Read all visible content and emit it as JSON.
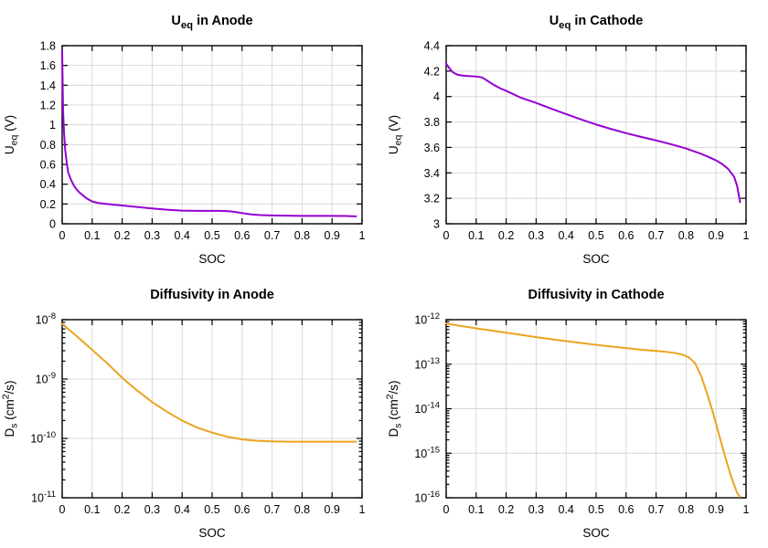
{
  "figure": {
    "background": "#ffffff",
    "grid_color": "#d8d8d8",
    "axis_color": "#000000",
    "text_color": "#000000"
  },
  "chart_data": [
    {
      "id": "ueq-anode",
      "type": "line",
      "title_segments": [
        {
          "t": "U"
        },
        {
          "t": "eq",
          "s": "sub"
        },
        {
          "t": " in Anode"
        }
      ],
      "xlabel": "SOC",
      "ylabel_segments": [
        {
          "t": "U"
        },
        {
          "t": "eq",
          "s": "sub"
        },
        {
          "t": " (V)"
        }
      ],
      "xlim": [
        0,
        1
      ],
      "ylim": [
        0,
        1.8
      ],
      "yscale": "linear",
      "grid": true,
      "legend": "none",
      "line_color": "#9400d3",
      "xticks": {
        "values": [
          0,
          0.1,
          0.2,
          0.3,
          0.4,
          0.5,
          0.6,
          0.7,
          0.8,
          0.9,
          1
        ],
        "labels": [
          "0",
          "0.1",
          "0.2",
          "0.3",
          "0.4",
          "0.5",
          "0.6",
          "0.7",
          "0.8",
          "0.9",
          "1"
        ]
      },
      "yticks": {
        "values": [
          0,
          0.2,
          0.4,
          0.6,
          0.8,
          1,
          1.2,
          1.4,
          1.6,
          1.8
        ],
        "labels": [
          "0",
          "0.2",
          "0.4",
          "0.6",
          "0.8",
          "1",
          "1.2",
          "1.4",
          "1.6",
          "1.8"
        ]
      },
      "series": [
        {
          "name": "Ueq anode",
          "x": [
            0,
            0.003,
            0.006,
            0.01,
            0.015,
            0.02,
            0.03,
            0.04,
            0.05,
            0.06,
            0.08,
            0.1,
            0.12,
            0.15,
            0.18,
            0.2,
            0.25,
            0.3,
            0.35,
            0.4,
            0.45,
            0.5,
            0.53,
            0.56,
            0.58,
            0.6,
            0.63,
            0.66,
            0.7,
            0.75,
            0.8,
            0.85,
            0.9,
            0.95,
            0.98
          ],
          "y": [
            1.75,
            1.15,
            0.93,
            0.75,
            0.62,
            0.52,
            0.44,
            0.38,
            0.34,
            0.31,
            0.26,
            0.225,
            0.21,
            0.2,
            0.19,
            0.185,
            0.17,
            0.155,
            0.142,
            0.133,
            0.13,
            0.13,
            0.13,
            0.126,
            0.118,
            0.108,
            0.095,
            0.088,
            0.084,
            0.082,
            0.08,
            0.08,
            0.08,
            0.078,
            0.075
          ]
        }
      ]
    },
    {
      "id": "ueq-cathode",
      "type": "line",
      "title_segments": [
        {
          "t": "U"
        },
        {
          "t": "eq",
          "s": "sub"
        },
        {
          "t": " in Cathode"
        }
      ],
      "xlabel": "SOC",
      "ylabel_segments": [
        {
          "t": "U"
        },
        {
          "t": "eq",
          "s": "sub"
        },
        {
          "t": " (V)"
        }
      ],
      "xlim": [
        0,
        1
      ],
      "ylim": [
        3,
        4.4
      ],
      "yscale": "linear",
      "grid": true,
      "legend": "none",
      "line_color": "#9400d3",
      "xticks": {
        "values": [
          0,
          0.1,
          0.2,
          0.3,
          0.4,
          0.5,
          0.6,
          0.7,
          0.8,
          0.9,
          1
        ],
        "labels": [
          "0",
          "0.1",
          "0.2",
          "0.3",
          "0.4",
          "0.5",
          "0.6",
          "0.7",
          "0.8",
          "0.9",
          "1"
        ]
      },
      "yticks": {
        "values": [
          3,
          3.2,
          3.4,
          3.6,
          3.8,
          4,
          4.2,
          4.4
        ],
        "labels": [
          "3",
          "3.2",
          "3.4",
          "3.6",
          "3.8",
          "4",
          "4.2",
          "4.4"
        ]
      },
      "series": [
        {
          "name": "Ueq cathode",
          "x": [
            0,
            0.01,
            0.02,
            0.03,
            0.04,
            0.06,
            0.08,
            0.1,
            0.12,
            0.14,
            0.16,
            0.18,
            0.2,
            0.25,
            0.3,
            0.35,
            0.4,
            0.45,
            0.5,
            0.55,
            0.6,
            0.65,
            0.7,
            0.75,
            0.8,
            0.85,
            0.88,
            0.9,
            0.92,
            0.94,
            0.96,
            0.97,
            0.98
          ],
          "y": [
            4.26,
            4.225,
            4.195,
            4.18,
            4.17,
            4.163,
            4.16,
            4.158,
            4.15,
            4.12,
            4.09,
            4.065,
            4.045,
            3.99,
            3.95,
            3.905,
            3.862,
            3.82,
            3.78,
            3.745,
            3.712,
            3.683,
            3.655,
            3.625,
            3.592,
            3.55,
            3.52,
            3.498,
            3.47,
            3.432,
            3.37,
            3.3,
            3.17
          ]
        }
      ]
    },
    {
      "id": "diffusivity-anode",
      "type": "line",
      "title_segments": [
        {
          "t": "Diffusivity in Anode"
        }
      ],
      "xlabel": "SOC",
      "ylabel_segments": [
        {
          "t": "D"
        },
        {
          "t": "s",
          "s": "sub"
        },
        {
          "t": " (cm"
        },
        {
          "t": "2",
          "s": "sup"
        },
        {
          "t": "/s)"
        }
      ],
      "xlim": [
        0,
        1
      ],
      "ylim": [
        1e-11,
        1e-08
      ],
      "yscale": "log",
      "grid": true,
      "legend": "none",
      "line_color": "#eaa41e",
      "xticks": {
        "values": [
          0,
          0.1,
          0.2,
          0.3,
          0.4,
          0.5,
          0.6,
          0.7,
          0.8,
          0.9,
          1
        ],
        "labels": [
          "0",
          "0.1",
          "0.2",
          "0.3",
          "0.4",
          "0.5",
          "0.6",
          "0.7",
          "0.8",
          "0.9",
          "1"
        ]
      },
      "yticks": {
        "exponents": [
          -11,
          -10,
          -9,
          -8
        ]
      },
      "series": [
        {
          "name": "Ds anode",
          "x": [
            0,
            0.05,
            0.1,
            0.15,
            0.2,
            0.25,
            0.3,
            0.35,
            0.4,
            0.45,
            0.5,
            0.55,
            0.6,
            0.65,
            0.7,
            0.75,
            0.8,
            0.85,
            0.9,
            0.95,
            0.98
          ],
          "y": [
            8.5e-09,
            5.2e-09,
            3.1e-09,
            1.85e-09,
            1.05e-09,
            6.4e-10,
            4.1e-10,
            2.8e-10,
            2e-10,
            1.52e-10,
            1.25e-10,
            1.07e-10,
            9.6e-11,
            9.1e-11,
            8.9e-11,
            8.8e-11,
            8.8e-11,
            8.8e-11,
            8.8e-11,
            8.8e-11,
            8.8e-11
          ]
        }
      ]
    },
    {
      "id": "diffusivity-cathode",
      "type": "line",
      "title_segments": [
        {
          "t": "Diffusivity in Cathode"
        }
      ],
      "xlabel": "SOC",
      "ylabel_segments": [
        {
          "t": "D"
        },
        {
          "t": "s",
          "s": "sub"
        },
        {
          "t": " (cm"
        },
        {
          "t": "2",
          "s": "sup"
        },
        {
          "t": "/s)"
        }
      ],
      "xlim": [
        0,
        1
      ],
      "ylim": [
        1e-16,
        1e-12
      ],
      "yscale": "log",
      "grid": true,
      "legend": "none",
      "line_color": "#eaa41e",
      "xticks": {
        "values": [
          0,
          0.1,
          0.2,
          0.3,
          0.4,
          0.5,
          0.6,
          0.7,
          0.8,
          0.9,
          1
        ],
        "labels": [
          "0",
          "0.1",
          "0.2",
          "0.3",
          "0.4",
          "0.5",
          "0.6",
          "0.7",
          "0.8",
          "0.9",
          "1"
        ]
      },
      "yticks": {
        "exponents": [
          -16,
          -15,
          -14,
          -13,
          -12
        ]
      },
      "series": [
        {
          "name": "Ds cathode",
          "x": [
            0,
            0.05,
            0.1,
            0.15,
            0.2,
            0.25,
            0.3,
            0.35,
            0.4,
            0.45,
            0.5,
            0.55,
            0.6,
            0.65,
            0.7,
            0.73,
            0.76,
            0.79,
            0.81,
            0.83,
            0.85,
            0.87,
            0.89,
            0.91,
            0.93,
            0.95,
            0.97,
            0.98
          ],
          "y": [
            8.2e-13,
            7.2e-13,
            6.4e-13,
            5.7e-13,
            5.1e-13,
            4.55e-13,
            4.05e-13,
            3.65e-13,
            3.3e-13,
            3e-13,
            2.72e-13,
            2.5e-13,
            2.3e-13,
            2.12e-13,
            1.98e-13,
            1.9e-13,
            1.8e-13,
            1.62e-13,
            1.42e-13,
            1.05e-13,
            5.5e-14,
            2.2e-14,
            8e-15,
            2.6e-15,
            8.5e-16,
            3e-16,
            1.3e-16,
            1.05e-16
          ]
        }
      ]
    }
  ]
}
